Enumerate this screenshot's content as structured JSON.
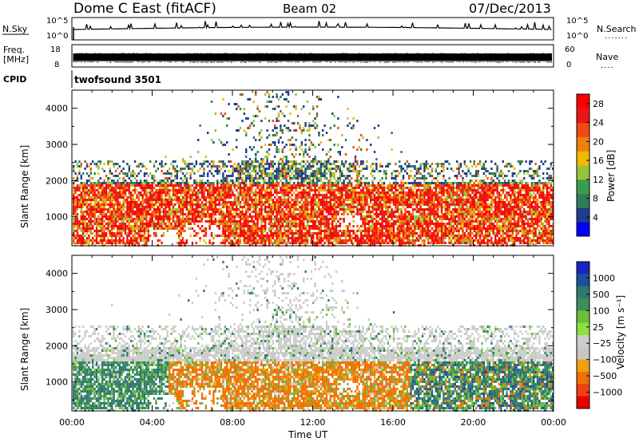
{
  "header": {
    "station": "Dome C East (fitACF)",
    "beam": "Beam 02",
    "date": "07/Dec/2013"
  },
  "top_panels": {
    "nsky_label": "N.Sky",
    "nsky_ticks_left": [
      "10^5",
      "10^0"
    ],
    "nsky_ticks_right": [
      "10^5",
      "10^0"
    ],
    "nsearch_label": "N.Search",
    "freq_label_1": "Freq.",
    "freq_label_2": "[MHz]",
    "freq_ticks_left": [
      "18",
      "8"
    ],
    "nave_ticks_right": [
      "60",
      "0"
    ],
    "nave_label": "Nave",
    "cpid_label": "CPID",
    "cpid_value": "twofsound 3501"
  },
  "colors": {
    "power_scale": [
      "#0000ff",
      "#1e3e8c",
      "#2e7d58",
      "#3a9d4e",
      "#99c23c",
      "#f2b900",
      "#f07f0d",
      "#f04a10",
      "#e81616",
      "#ff0000"
    ],
    "velocity_scale": [
      "#1a24c4",
      "#1d4f9e",
      "#2e7a6e",
      "#3c8e5a",
      "#6bbf3a",
      "#8ee03c",
      "#cdcdcd",
      "#c8c8c0",
      "#f2a010",
      "#f07000",
      "#f04010",
      "#e80000"
    ]
  },
  "chart_data": [
    {
      "type": "heatmap",
      "name": "power",
      "ylabel": "Slant Range [km]",
      "yticks": [
        "1000",
        "2000",
        "3000",
        "4000"
      ],
      "ylim": [
        200,
        4500
      ],
      "xlabel": "",
      "xticks": [
        "00:00",
        "04:00",
        "08:00",
        "12:00",
        "16:00",
        "20:00",
        "00:00"
      ],
      "colorbar_label": "Power [dB]",
      "colorbar_ticks": [
        "4",
        "8",
        "12",
        "16",
        "20",
        "24",
        "28"
      ],
      "colorbar_range": [
        0,
        30
      ]
    },
    {
      "type": "heatmap",
      "name": "velocity",
      "ylabel": "Slant Range [km]",
      "yticks": [
        "1000",
        "2000",
        "3000",
        "4000"
      ],
      "ylim": [
        200,
        4500
      ],
      "xlabel": "Time UT",
      "xticks": [
        "00:00",
        "04:00",
        "08:00",
        "12:00",
        "16:00",
        "20:00",
        "00:00"
      ],
      "colorbar_label": "Velocity [m s⁻¹]",
      "colorbar_ticks": [
        "1000",
        "500",
        "100",
        "25",
        "−25",
        "−100",
        "−500",
        "−1000"
      ]
    }
  ]
}
